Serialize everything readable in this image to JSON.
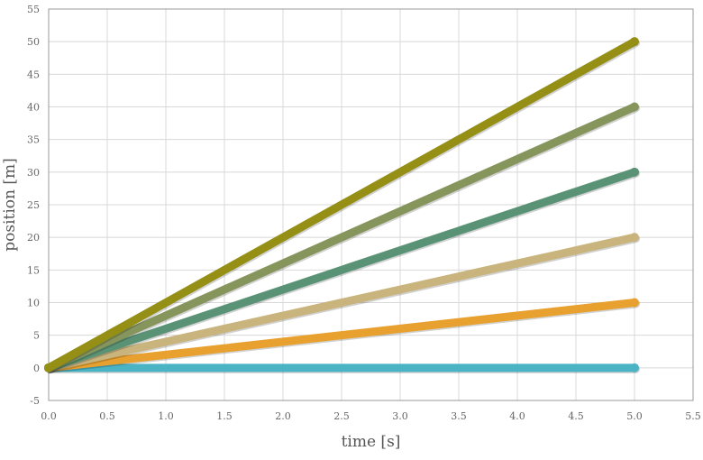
{
  "chart_data": {
    "type": "line",
    "xlabel": "time [s]",
    "ylabel": "position [m]",
    "xlim": [
      0.0,
      5.5
    ],
    "ylim": [
      -5,
      55
    ],
    "x_ticks": [
      "0.0",
      "0.5",
      "1.0",
      "1.5",
      "2.0",
      "2.5",
      "3.0",
      "3.5",
      "4.0",
      "4.5",
      "5.0",
      "5.5"
    ],
    "y_ticks": [
      "-5",
      "0",
      "5",
      "10",
      "15",
      "20",
      "25",
      "30",
      "35",
      "40",
      "45",
      "50",
      "55"
    ],
    "grid": true,
    "legend": "none",
    "series": [
      {
        "color": "#4ab3c4",
        "x": [
          0,
          5
        ],
        "y": [
          0,
          0
        ]
      },
      {
        "color": "#e8a12e",
        "x": [
          0,
          5
        ],
        "y": [
          0,
          10
        ]
      },
      {
        "color": "#c9b47e",
        "x": [
          0,
          5
        ],
        "y": [
          0,
          20
        ]
      },
      {
        "color": "#5a9275",
        "x": [
          0,
          5
        ],
        "y": [
          0,
          30
        ]
      },
      {
        "color": "#86955c",
        "x": [
          0,
          5
        ],
        "y": [
          0,
          40
        ]
      },
      {
        "color": "#958f16",
        "x": [
          0,
          5
        ],
        "y": [
          0,
          50
        ]
      }
    ]
  }
}
